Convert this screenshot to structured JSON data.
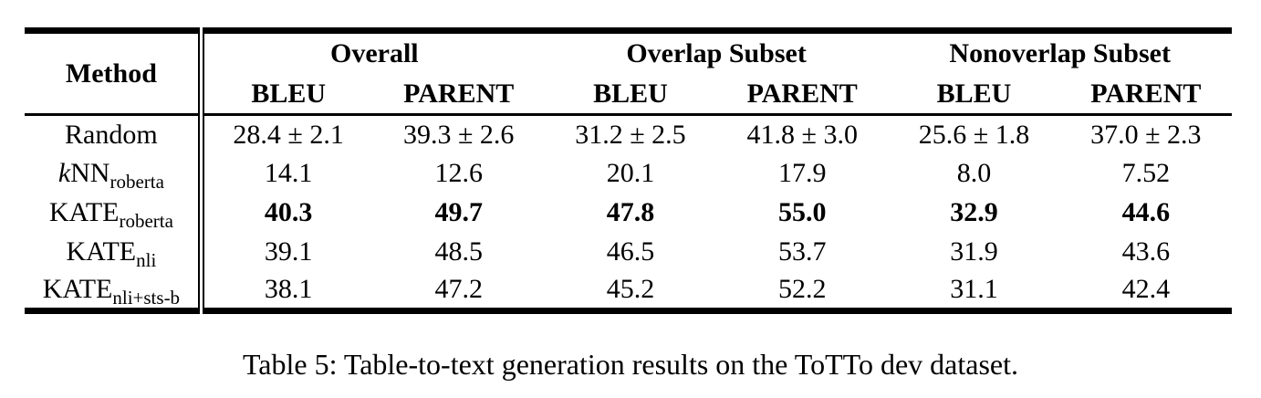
{
  "colors": {
    "text": "#000000",
    "background": "#ffffff",
    "rule": "#000000"
  },
  "table": {
    "method_header": "Method",
    "groups": [
      {
        "label": "Overall"
      },
      {
        "label": "Overlap Subset"
      },
      {
        "label": "Nonoverlap Subset"
      }
    ],
    "subheaders": [
      "BLEU",
      "PARENT",
      "BLEU",
      "PARENT",
      "BLEU",
      "PARENT"
    ],
    "rows": [
      {
        "method": {
          "pre_italic": "",
          "base": "Random",
          "sub": ""
        },
        "bold": false,
        "values": [
          "28.4 ± 2.1",
          "39.3 ± 2.6",
          "31.2 ± 2.5",
          "41.8 ± 3.0",
          "25.6 ± 1.8",
          "37.0 ± 2.3"
        ]
      },
      {
        "method": {
          "pre_italic": "k",
          "base": "NN",
          "sub": "roberta"
        },
        "bold": false,
        "values": [
          "14.1",
          "12.6",
          "20.1",
          "17.9",
          "8.0",
          "7.52"
        ]
      },
      {
        "method": {
          "pre_italic": "",
          "base": "KATE",
          "sub": "roberta"
        },
        "bold": true,
        "values": [
          "40.3",
          "49.7",
          "47.8",
          "55.0",
          "32.9",
          "44.6"
        ]
      },
      {
        "method": {
          "pre_italic": "",
          "base": "KATE",
          "sub": "nli"
        },
        "bold": false,
        "values": [
          "39.1",
          "48.5",
          "46.5",
          "53.7",
          "31.9",
          "43.6"
        ]
      },
      {
        "method": {
          "pre_italic": "",
          "base": "KATE",
          "sub": "nli+sts-b"
        },
        "bold": false,
        "values": [
          "38.1",
          "47.2",
          "45.2",
          "52.2",
          "31.1",
          "42.4"
        ]
      }
    ],
    "caption": "Table 5: Table-to-text generation results on the ToTTo dev dataset."
  }
}
